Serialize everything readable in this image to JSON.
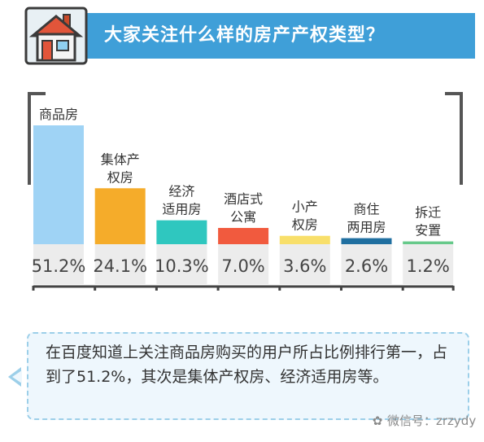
{
  "banner": {
    "title": "大家关注什么样的房产产权类型？"
  },
  "chart_data": {
    "type": "bar",
    "title": "大家关注什么样的房产产权类型？",
    "categories": [
      "商品房",
      "集体产权房",
      "经济适用房",
      "酒店式公寓",
      "小产权房",
      "商住两用房",
      "拆迁安置"
    ],
    "category_lines": [
      [
        "商品房"
      ],
      [
        "集体产",
        "权房"
      ],
      [
        "经济",
        "适用房"
      ],
      [
        "酒店式",
        "公寓"
      ],
      [
        "小产",
        "权房"
      ],
      [
        "商住",
        "两用房"
      ],
      [
        "拆迁",
        "安置"
      ]
    ],
    "values": [
      51.2,
      24.1,
      10.3,
      7.0,
      3.6,
      2.6,
      1.2
    ],
    "value_labels": [
      "51.2%",
      "24.1%",
      "10.3%",
      "7.0%",
      "3.6%",
      "2.6%",
      "1.2%"
    ],
    "colors": [
      "#9fd3f5",
      "#f5ac2a",
      "#2fc7bf",
      "#f15a3e",
      "#f8df6a",
      "#1f6fa0",
      "#66c98a"
    ],
    "ylim": [
      0,
      51.2
    ],
    "grid": false,
    "legend": "none"
  },
  "note": {
    "text": "在百度知道上关注商品房购买的用户所占比例排行第一，占到了51.2%，其次是集体产权房、经济适用房等。"
  },
  "watermark": {
    "text": "微信号：zrzydy",
    "icon": "wechat-icon"
  }
}
